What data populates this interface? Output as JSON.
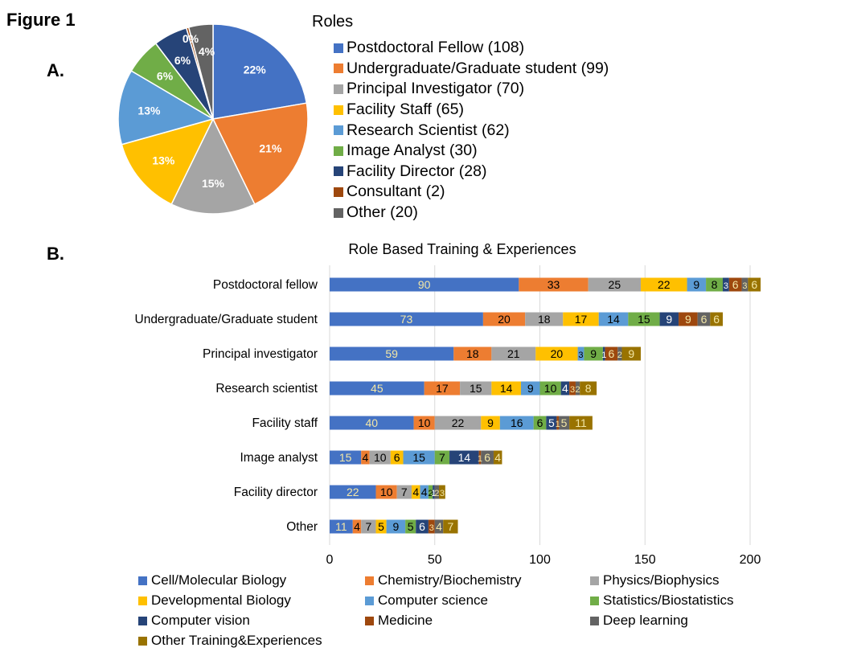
{
  "figure_label": "Figure 1",
  "panel_a_label": "A.",
  "panel_b_label": "B.",
  "chart_data": [
    {
      "type": "pie",
      "legend_title": "Roles",
      "legend_placement": "right",
      "slices": [
        {
          "label": "Postdoctoral Fellow (108)",
          "value": 108,
          "pct_label": "22%",
          "color": "#4472C4"
        },
        {
          "label": "Undergraduate/Graduate student (99)",
          "value": 99,
          "pct_label": "21%",
          "color": "#ED7D31"
        },
        {
          "label": "Principal Investigator (70)",
          "value": 70,
          "pct_label": "15%",
          "color": "#A5A5A5"
        },
        {
          "label": "Facility Staff (65)",
          "value": 65,
          "pct_label": "13%",
          "color": "#FFC000"
        },
        {
          "label": "Research Scientist (62)",
          "value": 62,
          "pct_label": "13%",
          "color": "#5B9BD5"
        },
        {
          "label": "Image Analyst (30)",
          "value": 30,
          "pct_label": "6%",
          "color": "#70AD47"
        },
        {
          "label": "Facility Director (28)",
          "value": 28,
          "pct_label": "6%",
          "color": "#264478"
        },
        {
          "label": "Consultant (2)",
          "value": 2,
          "pct_label": "0%",
          "color": "#9E480E"
        },
        {
          "label": "Other (20)",
          "value": 20,
          "pct_label": "4%",
          "color": "#636363"
        }
      ]
    },
    {
      "type": "bar",
      "orientation": "horizontal",
      "stacked": true,
      "title": "Role Based Training & Experiences",
      "xlim": [
        0,
        200
      ],
      "xticks": [
        0,
        50,
        100,
        150,
        200
      ],
      "grid": true,
      "legend_placement": "bottom",
      "categories": [
        "Postdoctoral fellow",
        "Undergraduate/Graduate student",
        "Principal investigator",
        "Research scientist",
        "Facility staff",
        "Image analyst",
        "Facility director",
        "Other"
      ],
      "series": [
        {
          "name": "Cell/Molecular Biology",
          "color": "#4472C4",
          "label_color": "#F2E6A6",
          "values": [
            90,
            73,
            59,
            45,
            40,
            15,
            22,
            11
          ]
        },
        {
          "name": "Chemistry/Biochemistry",
          "color": "#ED7D31",
          "label_color": "#000000",
          "values": [
            33,
            20,
            18,
            17,
            10,
            4,
            10,
            4
          ]
        },
        {
          "name": "Physics/Biophysics",
          "color": "#A5A5A5",
          "label_color": "#000000",
          "values": [
            25,
            18,
            21,
            15,
            22,
            10,
            7,
            7
          ]
        },
        {
          "name": "Developmental Biology",
          "color": "#FFC000",
          "label_color": "#000000",
          "values": [
            22,
            17,
            20,
            14,
            9,
            6,
            4,
            5
          ]
        },
        {
          "name": "Computer science",
          "color": "#5B9BD5",
          "label_color": "#000000",
          "values": [
            9,
            14,
            3,
            9,
            16,
            15,
            4,
            9
          ]
        },
        {
          "name": "Statistics/Biostatistics",
          "color": "#70AD47",
          "label_color": "#000000",
          "values": [
            8,
            15,
            9,
            10,
            6,
            7,
            2,
            5
          ]
        },
        {
          "name": "Computer vision",
          "color": "#264478",
          "label_color": "#FFFFFF",
          "values": [
            3,
            9,
            1,
            4,
            5,
            14,
            1,
            6
          ]
        },
        {
          "name": "Medicine",
          "color": "#9E480E",
          "label_color": "#F2E6A6",
          "values": [
            6,
            9,
            6,
            3,
            1,
            1,
            0,
            3
          ]
        },
        {
          "name": "Deep learning",
          "color": "#636363",
          "label_color": "#F2E6A6",
          "values": [
            3,
            6,
            2,
            2,
            5,
            6,
            2,
            4
          ]
        },
        {
          "name": "Other Training&Experiences",
          "color": "#997300",
          "label_color": "#F2E6A6",
          "values": [
            6,
            6,
            9,
            8,
            11,
            4,
            3,
            7
          ]
        }
      ]
    }
  ]
}
